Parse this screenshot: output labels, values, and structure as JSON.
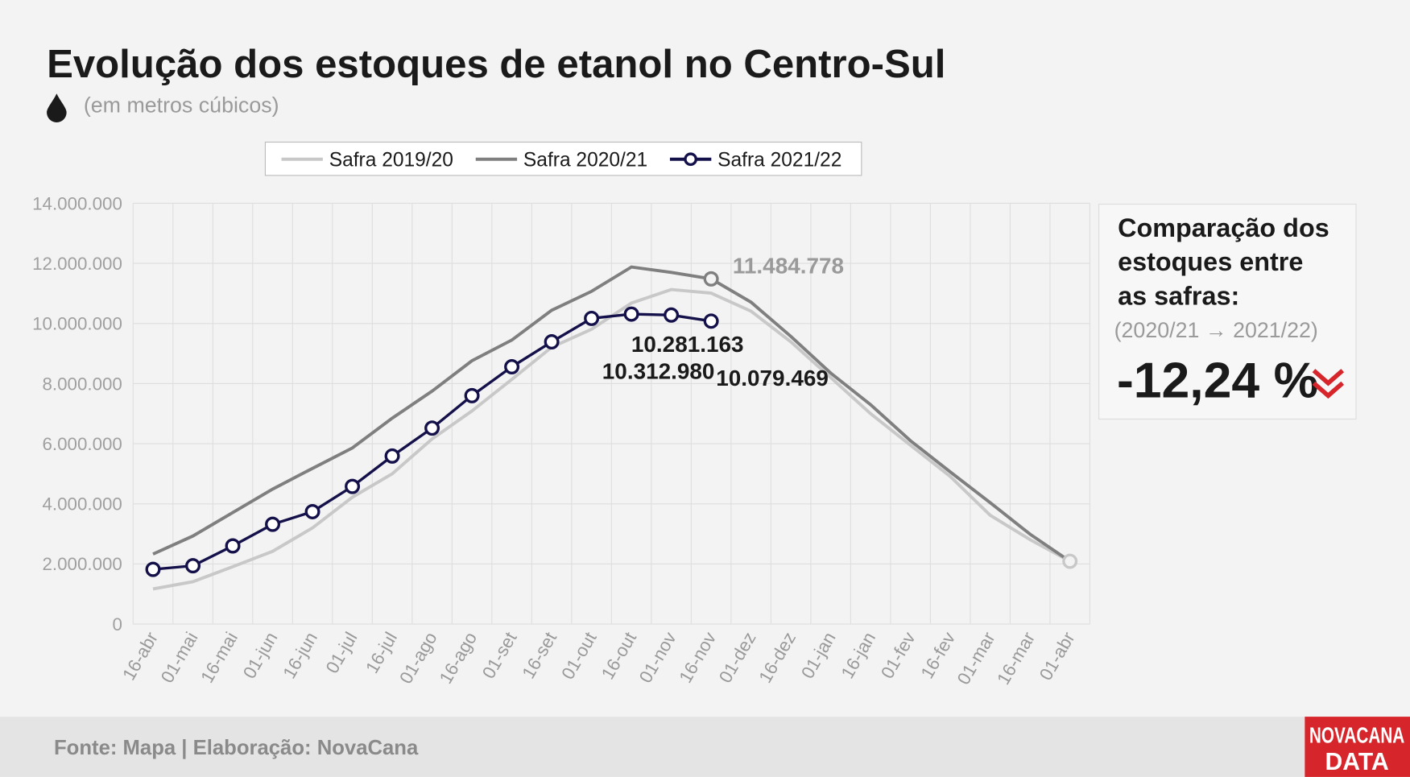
{
  "chart_data": {
    "type": "line",
    "title": "Evolução dos estoques de etanol no Centro-Sul",
    "subtitle": "(em metros cúbicos)",
    "categories": [
      "16-abr",
      "01-mai",
      "16-mai",
      "01-jun",
      "16-jun",
      "01-jul",
      "16-jul",
      "01-ago",
      "16-ago",
      "01-set",
      "16-set",
      "01-out",
      "16-out",
      "01-nov",
      "16-nov",
      "01-dez",
      "16-dez",
      "01-jan",
      "16-jan",
      "01-fev",
      "16-fev",
      "01-mar",
      "16-mar",
      "01-abr"
    ],
    "series": [
      {
        "name": "Safra 2019/20",
        "color": "#c8c8c8",
        "values": [
          1170000,
          1410000,
          1910000,
          2420000,
          3200000,
          4220000,
          5000000,
          6160000,
          7090000,
          8140000,
          9210000,
          9810000,
          10680000,
          11130000,
          11010000,
          10410000,
          9390000,
          8200000,
          7000000,
          5950000,
          4910000,
          3620000,
          2810000,
          2090000
        ]
      },
      {
        "name": "Safra 2020/21",
        "color": "#7f7f7f",
        "values": [
          2330000,
          2930000,
          3710000,
          4490000,
          5180000,
          5860000,
          6850000,
          7750000,
          8760000,
          9450000,
          10440000,
          11070000,
          11880000,
          11700000,
          11484778,
          10710000,
          9570000,
          8350000,
          7300000,
          6100000,
          5060000,
          4040000,
          2990000,
          2090000
        ],
        "value_labels": [
          null,
          null,
          null,
          null,
          null,
          null,
          null,
          null,
          null,
          null,
          null,
          null,
          null,
          null,
          "11.484.778",
          null,
          null,
          null,
          null,
          null,
          null,
          null,
          null,
          null
        ]
      },
      {
        "name": "Safra 2021/22",
        "color": "#14104a",
        "marker": true,
        "values": [
          1820000,
          1940000,
          2600000,
          3320000,
          3740000,
          4580000,
          5590000,
          6520000,
          7600000,
          8560000,
          9390000,
          10170000,
          10312980,
          10281163,
          10079469,
          null,
          null,
          null,
          null,
          null,
          null,
          null,
          null,
          null
        ],
        "value_labels": [
          null,
          null,
          null,
          null,
          null,
          null,
          null,
          null,
          null,
          null,
          null,
          null,
          "10.312.980",
          "10.281.163",
          "10.079.469",
          null,
          null,
          null,
          null,
          null,
          null,
          null,
          null,
          null
        ]
      }
    ],
    "ylim": [
      0,
      14000000
    ],
    "yticks": [
      0,
      {
        "value": 2000000,
        "label": "2.000.000"
      },
      {
        "value": 4000000,
        "label": "4.000.000"
      },
      {
        "value": 6000000,
        "label": "6.000.000"
      },
      {
        "value": 8000000,
        "label": "8.000.000"
      },
      {
        "value": 10000000,
        "label": "10.000.000"
      },
      {
        "value": 12000000,
        "label": "12.000.000"
      },
      {
        "value": 14000000,
        "label": "14.000.000"
      }
    ],
    "grid": true,
    "legend": "top"
  },
  "side_panel": {
    "title_lines": [
      "Comparação dos",
      "estoques entre",
      "as safras:"
    ],
    "period": "(2020/21 → 2021/22)",
    "change": "-12,24 %"
  },
  "footer": {
    "source": "Fonte: Mapa | Elaboração: NovaCana",
    "logo_lines": [
      "NOVACANA",
      "DATA"
    ]
  }
}
